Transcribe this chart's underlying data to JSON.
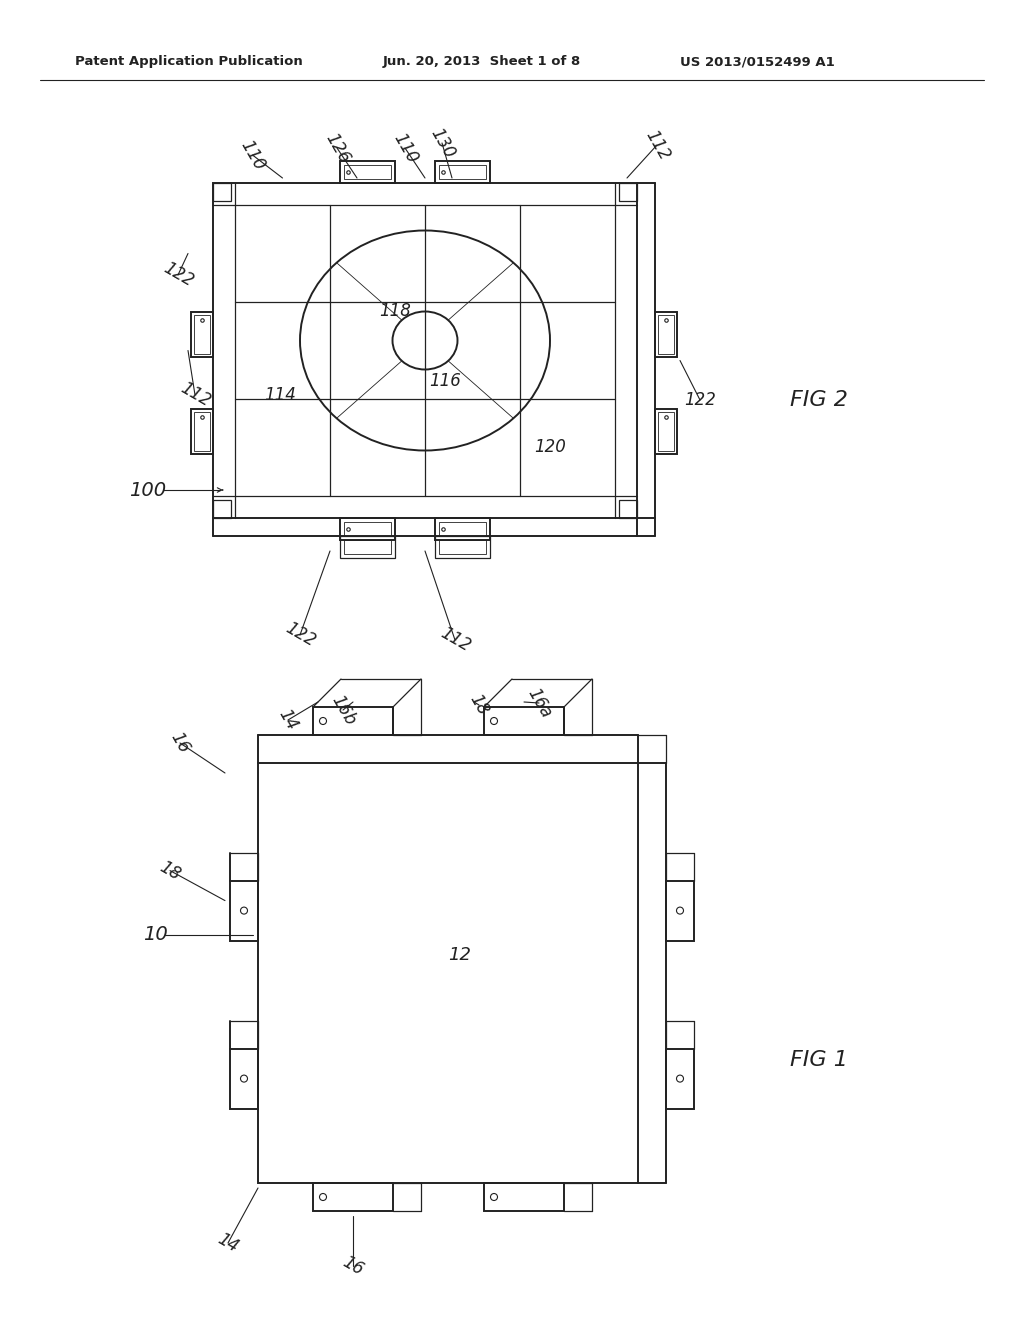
{
  "bg_color": "#ffffff",
  "line_color": "#222222",
  "header_left": "Patent Application Publication",
  "header_mid": "Jun. 20, 2013  Sheet 1 of 8",
  "header_right": "US 2013/0152499 A1"
}
